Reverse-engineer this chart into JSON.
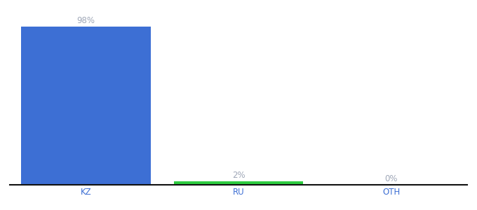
{
  "categories": [
    "KZ",
    "RU",
    "OTH"
  ],
  "values": [
    98,
    2,
    0
  ],
  "labels": [
    "98%",
    "2%",
    "0%"
  ],
  "bar_colors": [
    "#3d6fd4",
    "#2ecc40",
    "#3d6fd4"
  ],
  "label_color": "#a0a8b8",
  "background_color": "#ffffff",
  "bar_width": 0.85,
  "ylim": [
    0,
    108
  ],
  "xlabel_color": "#3d6fd4",
  "axis_line_color": "#111111",
  "label_fontsize": 8.5,
  "tick_fontsize": 8.5
}
